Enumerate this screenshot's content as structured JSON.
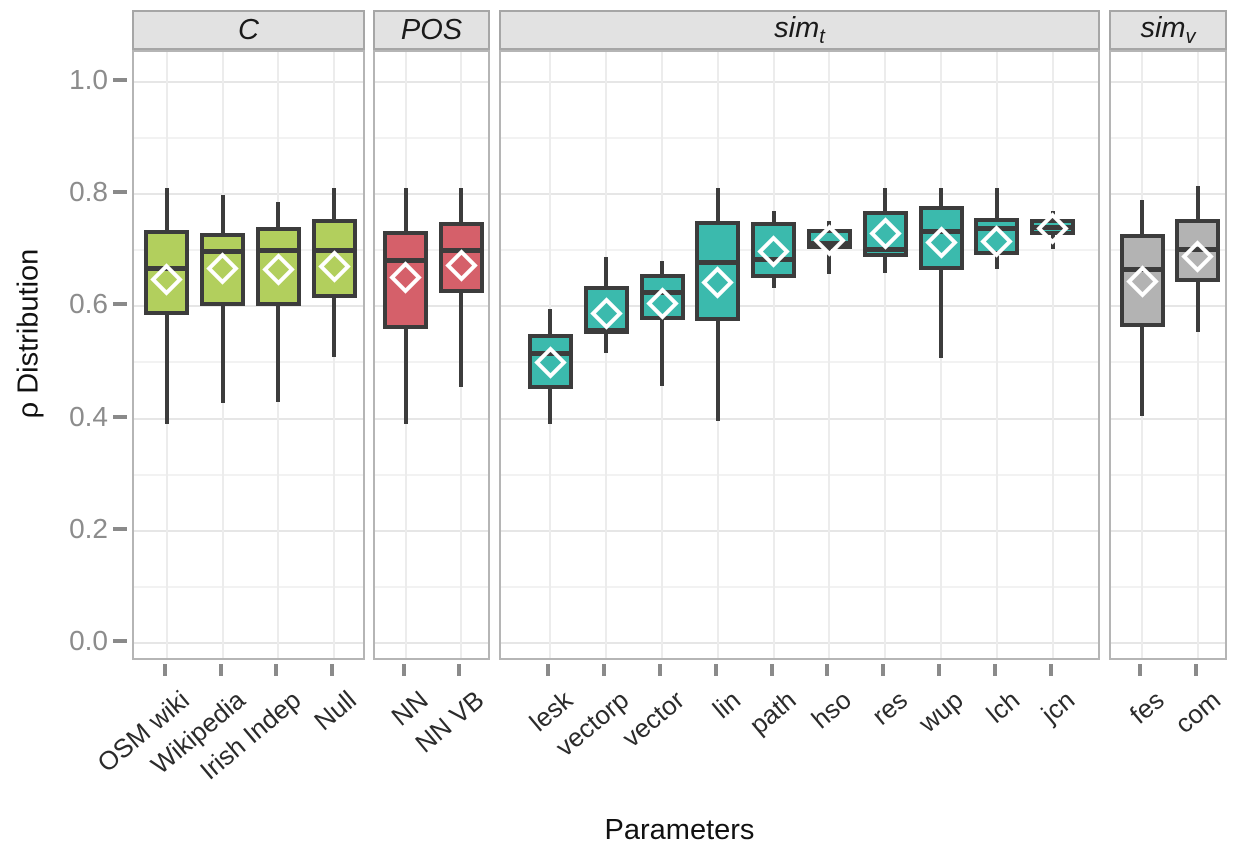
{
  "figure": {
    "ylabel": "ρ Distribution",
    "xlabel": "Parameters"
  },
  "chart_data": {
    "type": "boxplot",
    "title": "",
    "ylabel": "ρ Distribution",
    "xlabel": "Parameters",
    "ylim": [
      -0.03,
      1.05
    ],
    "grid": "horizontal major+minor, vertical at categories",
    "legend": "none",
    "mean_marker": "open white diamond",
    "yticks": [
      0.0,
      0.2,
      0.4,
      0.6,
      0.8,
      1.0
    ],
    "ytick_labels": [
      "0.0",
      "0.2",
      "0.4",
      "0.6",
      "0.8",
      "1.0"
    ],
    "facets": [
      {
        "label": "C",
        "subscript": "",
        "color": "#b2cf5d",
        "boxes": [
          {
            "category": "OSM wiki",
            "whisker_low": 0.39,
            "q1": 0.585,
            "median": 0.667,
            "q3": 0.735,
            "whisker_high": 0.81,
            "mean": 0.648
          },
          {
            "category": "Wikipedia",
            "whisker_low": 0.428,
            "q1": 0.6,
            "median": 0.698,
            "q3": 0.73,
            "whisker_high": 0.798,
            "mean": 0.667
          },
          {
            "category": "Irish Indep",
            "whisker_low": 0.43,
            "q1": 0.6,
            "median": 0.699,
            "q3": 0.741,
            "whisker_high": 0.785,
            "mean": 0.666
          },
          {
            "category": "Null",
            "whisker_low": 0.51,
            "q1": 0.615,
            "median": 0.699,
            "q3": 0.756,
            "whisker_high": 0.81,
            "mean": 0.671
          }
        ]
      },
      {
        "label": "POS",
        "subscript": "",
        "color": "#d5606a",
        "boxes": [
          {
            "category": "NN",
            "whisker_low": 0.39,
            "q1": 0.56,
            "median": 0.682,
            "q3": 0.734,
            "whisker_high": 0.81,
            "mean": 0.651
          },
          {
            "category": "NN VB",
            "whisker_low": 0.456,
            "q1": 0.624,
            "median": 0.699,
            "q3": 0.75,
            "whisker_high": 0.81,
            "mean": 0.673
          }
        ]
      },
      {
        "label": "sim",
        "subscript": "t",
        "color": "#3bbaad",
        "boxes": [
          {
            "category": "lesk",
            "whisker_low": 0.39,
            "q1": 0.452,
            "median": 0.516,
            "q3": 0.551,
            "whisker_high": 0.595,
            "mean": 0.5
          },
          {
            "category": "vectorp",
            "whisker_low": 0.516,
            "q1": 0.551,
            "median": 0.557,
            "q3": 0.637,
            "whisker_high": 0.688,
            "mean": 0.588
          },
          {
            "category": "vector",
            "whisker_low": 0.458,
            "q1": 0.575,
            "median": 0.625,
            "q3": 0.657,
            "whisker_high": 0.681,
            "mean": 0.605
          },
          {
            "category": "lin",
            "whisker_low": 0.396,
            "q1": 0.573,
            "median": 0.678,
            "q3": 0.752,
            "whisker_high": 0.81,
            "mean": 0.643
          },
          {
            "category": "path",
            "whisker_low": 0.632,
            "q1": 0.65,
            "median": 0.684,
            "q3": 0.75,
            "whisker_high": 0.77,
            "mean": 0.697
          },
          {
            "category": "hso",
            "whisker_low": 0.657,
            "q1": 0.702,
            "median": 0.712,
            "q3": 0.738,
            "whisker_high": 0.752,
            "mean": 0.717
          },
          {
            "category": "res",
            "whisker_low": 0.659,
            "q1": 0.688,
            "median": 0.702,
            "q3": 0.769,
            "whisker_high": 0.81,
            "mean": 0.729
          },
          {
            "category": "wup",
            "whisker_low": 0.508,
            "q1": 0.664,
            "median": 0.734,
            "q3": 0.778,
            "whisker_high": 0.81,
            "mean": 0.713
          },
          {
            "category": "lch",
            "whisker_low": 0.666,
            "q1": 0.692,
            "median": 0.739,
            "q3": 0.757,
            "whisker_high": 0.81,
            "mean": 0.715
          },
          {
            "category": "jcn",
            "whisker_low": 0.702,
            "q1": 0.727,
            "median": 0.74,
            "q3": 0.755,
            "whisker_high": 0.77,
            "mean": 0.739
          }
        ]
      },
      {
        "label": "sim",
        "subscript": "v",
        "color": "#b3b3b3",
        "boxes": [
          {
            "category": "fes",
            "whisker_low": 0.405,
            "q1": 0.563,
            "median": 0.666,
            "q3": 0.729,
            "whisker_high": 0.79,
            "mean": 0.645
          },
          {
            "category": "com",
            "whisker_low": 0.554,
            "q1": 0.643,
            "median": 0.702,
            "q3": 0.755,
            "whisker_high": 0.815,
            "mean": 0.688
          }
        ]
      }
    ]
  }
}
